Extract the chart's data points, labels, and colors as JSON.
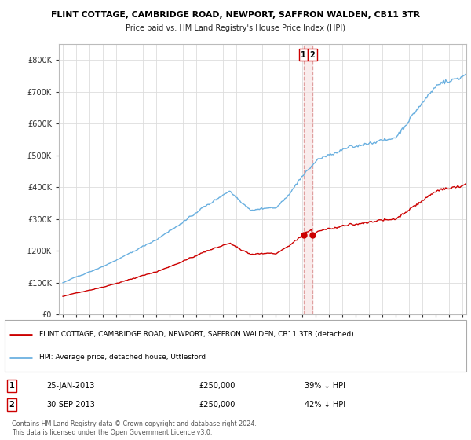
{
  "title1": "FLINT COTTAGE, CAMBRIDGE ROAD, NEWPORT, SAFFRON WALDEN, CB11 3TR",
  "title2": "Price paid vs. HM Land Registry's House Price Index (HPI)",
  "legend1": "FLINT COTTAGE, CAMBRIDGE ROAD, NEWPORT, SAFFRON WALDEN, CB11 3TR (detached)",
  "legend2": "HPI: Average price, detached house, Uttlesford",
  "sale1_date_str": "25-JAN-2013",
  "sale1_price": 250000,
  "sale1_hpi_str": "39% ↓ HPI",
  "sale2_date_str": "30-SEP-2013",
  "sale2_price": 250000,
  "sale2_hpi_str": "42% ↓ HPI",
  "sale1_x": 2013.07,
  "sale2_x": 2013.75,
  "footer": "Contains HM Land Registry data © Crown copyright and database right 2024.\nThis data is licensed under the Open Government Licence v3.0.",
  "hpi_color": "#6ab0e0",
  "sale_color": "#cc0000",
  "vline_color": "#e0a0a0",
  "vshade_color": "#f5e0e0",
  "background_color": "#ffffff",
  "grid_color": "#dddddd",
  "ylim": [
    0,
    850000
  ],
  "xlim_start": 1994.7,
  "xlim_end": 2025.3
}
